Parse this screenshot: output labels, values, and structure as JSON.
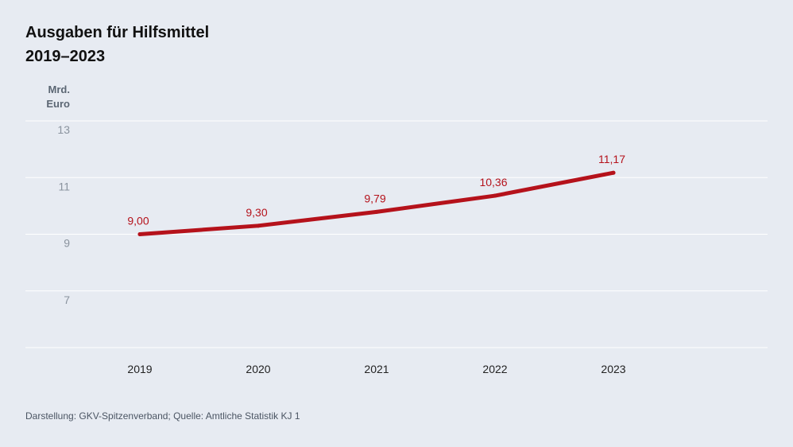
{
  "header": {
    "title_line1": "Ausgaben für Hilfsmittel",
    "title_line2": "2019–2023"
  },
  "footer": {
    "source": "Darstellung: GKV-Spitzenverband; Quelle: Amtliche Statistik KJ 1"
  },
  "colors": {
    "line": "#b5121b",
    "background": "#e7ebf2",
    "grid": "#ffffff"
  },
  "chart_data": {
    "type": "line",
    "title": "Ausgaben für Hilfsmittel 2019–2023",
    "ylabel_line1": "Mrd.",
    "ylabel_line2": "Euro",
    "xlabel": "",
    "categories": [
      "2019",
      "2020",
      "2021",
      "2022",
      "2023"
    ],
    "series": [
      {
        "values": [
          9.0,
          9.3,
          9.79,
          10.36,
          11.17
        ],
        "labels": [
          "9,00",
          "9,30",
          "9,79",
          "10,36",
          "11,17"
        ]
      }
    ],
    "ylim": [
      5,
      13
    ],
    "yticks": [
      {
        "value": 13,
        "label": "13"
      },
      {
        "value": 11,
        "label": "11"
      },
      {
        "value": 9,
        "label": "9"
      },
      {
        "value": 7,
        "label": "7"
      }
    ],
    "grid": true,
    "legend": "none"
  }
}
